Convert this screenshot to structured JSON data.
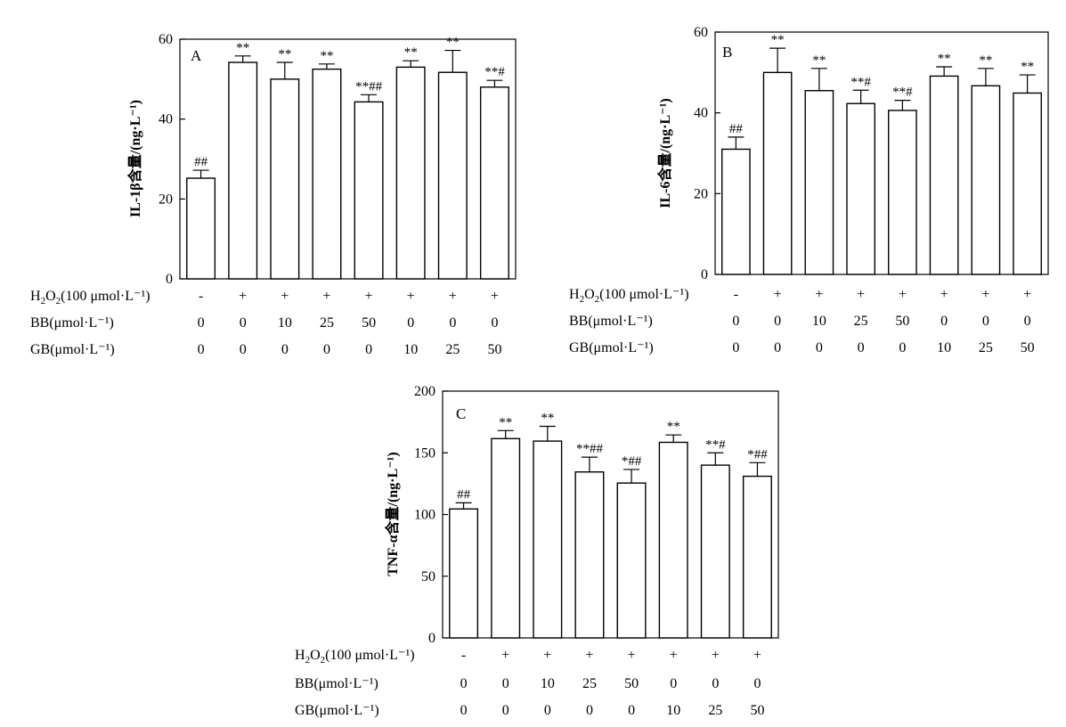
{
  "chart_data": [
    {
      "type": "bar",
      "panel": "A",
      "ylabel": "IL-1β含量/(ng·L⁻¹)",
      "ylim": [
        0,
        60
      ],
      "yticks": [
        0,
        20,
        40,
        60
      ],
      "values": [
        25.2,
        54.2,
        50.0,
        52.5,
        44.3,
        53.0,
        51.7,
        48.0
      ],
      "errors": [
        2.0,
        1.6,
        4.2,
        1.3,
        1.8,
        1.6,
        5.5,
        1.7
      ],
      "annotations": [
        "##",
        "**",
        "**",
        "**",
        "**##",
        "**",
        "**",
        "**#"
      ],
      "rows": [
        {
          "label_main": "H",
          "label_sub1": "2",
          "label_mid": "O",
          "label_sub2": "2",
          "label_rest": "(100 μmol·L⁻¹)",
          "values": [
            "-",
            "+",
            "+",
            "+",
            "+",
            "+",
            "+",
            "+"
          ]
        },
        {
          "label": "BB(μmol·L⁻¹)",
          "values": [
            "0",
            "0",
            "10",
            "25",
            "50",
            "0",
            "0",
            "0"
          ]
        },
        {
          "label": "GB(μmol·L⁻¹)",
          "values": [
            "0",
            "0",
            "0",
            "0",
            "0",
            "10",
            "25",
            "50"
          ]
        }
      ]
    },
    {
      "type": "bar",
      "panel": "B",
      "ylabel": "IL-6含量/(ng·L⁻¹)",
      "ylim": [
        0,
        60
      ],
      "yticks": [
        0,
        20,
        40,
        60
      ],
      "values": [
        31.0,
        50.0,
        45.5,
        42.3,
        40.6,
        49.1,
        46.7,
        44.9
      ],
      "errors": [
        3.0,
        6.0,
        5.5,
        3.3,
        2.5,
        2.3,
        4.3,
        4.5
      ],
      "annotations": [
        "##",
        "**",
        "**",
        "**#",
        "**#",
        "**",
        "**",
        "**"
      ],
      "rows": [
        {
          "label_main": "H",
          "label_sub1": "2",
          "label_mid": "O",
          "label_sub2": "2",
          "label_rest": "(100 μmol·L⁻¹)",
          "values": [
            "-",
            "+",
            "+",
            "+",
            "+",
            "+",
            "+",
            "+"
          ]
        },
        {
          "label": "BB(μmol·L⁻¹)",
          "values": [
            "0",
            "0",
            "10",
            "25",
            "50",
            "0",
            "0",
            "0"
          ]
        },
        {
          "label": "GB(μmol·L⁻¹)",
          "values": [
            "0",
            "0",
            "0",
            "0",
            "0",
            "10",
            "25",
            "50"
          ]
        }
      ]
    },
    {
      "type": "bar",
      "panel": "C",
      "ylabel": "TNF-α含量/(ng·L⁻¹)",
      "ylim": [
        0,
        200
      ],
      "yticks": [
        0,
        50,
        100,
        150,
        200
      ],
      "values": [
        104.5,
        161.5,
        159.5,
        134.5,
        125.5,
        158.5,
        140.0,
        131.0
      ],
      "errors": [
        5.0,
        6.5,
        12.0,
        12.0,
        11.0,
        6.0,
        10.0,
        11.0
      ],
      "annotations": [
        "##",
        "**",
        "**",
        "**##",
        "*##",
        "**",
        "**#",
        "*##"
      ],
      "rows": [
        {
          "label_main": "H",
          "label_sub1": "2",
          "label_mid": "O",
          "label_sub2": "2",
          "label_rest": "(100 μmol·L⁻¹)",
          "values": [
            "-",
            "+",
            "+",
            "+",
            "+",
            "+",
            "+",
            "+"
          ]
        },
        {
          "label": "BB(μmol·L⁻¹)",
          "values": [
            "0",
            "0",
            "10",
            "25",
            "50",
            "0",
            "0",
            "0"
          ]
        },
        {
          "label": "GB(μmol·L⁻¹)",
          "values": [
            "0",
            "0",
            "0",
            "0",
            "0",
            "10",
            "25",
            "50"
          ]
        }
      ]
    }
  ]
}
